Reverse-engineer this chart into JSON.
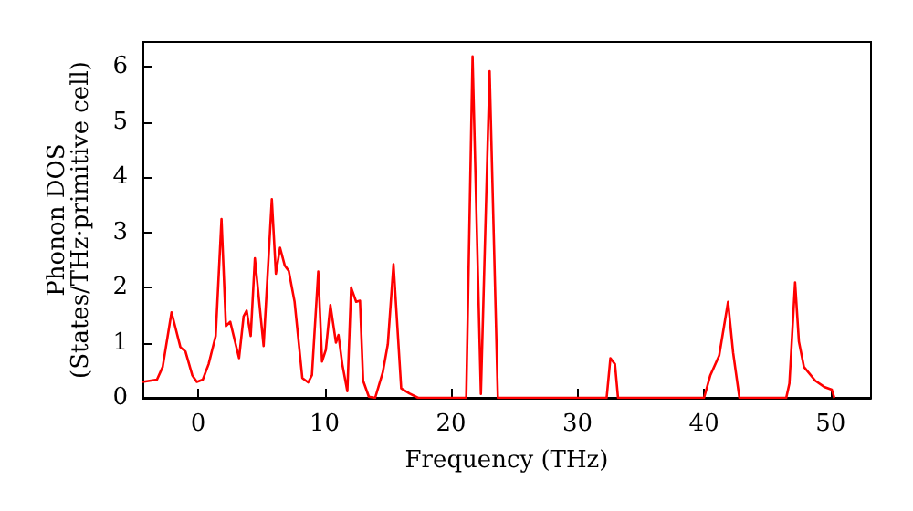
{
  "chart_data": {
    "type": "line",
    "xlabel": "Frequency (THz)",
    "ylabel": "Phonon DOS\n(States/THz·primitive cell)",
    "xlim": [
      -4.4,
      53.2
    ],
    "xticks": [
      0,
      10,
      20,
      30,
      40,
      50
    ],
    "ylim": [
      0,
      6.45
    ],
    "yticks": [
      0,
      1,
      2,
      3,
      4,
      5,
      6
    ],
    "grid": false,
    "marker": "none",
    "line_style": "solid",
    "series": [
      {
        "color": "#ff0000",
        "x": [
          -4.4,
          -3.25,
          -2.8,
          -2.1,
          -1.4,
          -1.0,
          -0.46,
          -0.1,
          0.37,
          0.83,
          1.39,
          1.85,
          2.2,
          2.54,
          3.24,
          3.6,
          3.84,
          4.16,
          4.49,
          5.18,
          5.83,
          6.15,
          6.48,
          6.85,
          7.17,
          7.63,
          8.24,
          8.7,
          9.0,
          9.5,
          9.8,
          10.1,
          10.46,
          10.9,
          11.1,
          11.4,
          11.8,
          12.1,
          12.5,
          12.8,
          13.05,
          13.5,
          14.0,
          14.6,
          15.0,
          15.45,
          16.06,
          16.7,
          17.4,
          21.2,
          21.7,
          22.36,
          23.05,
          23.7,
          32.3,
          32.6,
          32.96,
          33.2,
          40.0,
          40.5,
          41.2,
          41.9,
          42.3,
          42.8,
          46.5,
          46.75,
          47.2,
          47.5,
          47.9,
          48.8,
          49.5,
          50.1,
          50.3
        ],
        "values": [
          0.29,
          0.33,
          0.56,
          1.55,
          0.92,
          0.84,
          0.41,
          0.29,
          0.33,
          0.61,
          1.12,
          3.24,
          1.3,
          1.38,
          0.72,
          1.48,
          1.58,
          1.12,
          2.53,
          0.94,
          3.6,
          2.25,
          2.72,
          2.4,
          2.3,
          1.74,
          0.36,
          0.28,
          0.41,
          2.29,
          0.66,
          0.87,
          1.68,
          1.0,
          1.14,
          0.61,
          0.12,
          2.0,
          1.74,
          1.76,
          0.31,
          0.02,
          0,
          0.46,
          0.97,
          2.42,
          0.17,
          0.08,
          0,
          0,
          6.19,
          0.07,
          5.92,
          0,
          0,
          0.72,
          0.61,
          0,
          0,
          0.41,
          0.77,
          1.74,
          0.82,
          0,
          0,
          0.26,
          2.09,
          1.02,
          0.56,
          0.31,
          0.2,
          0.15,
          0
        ]
      }
    ]
  }
}
